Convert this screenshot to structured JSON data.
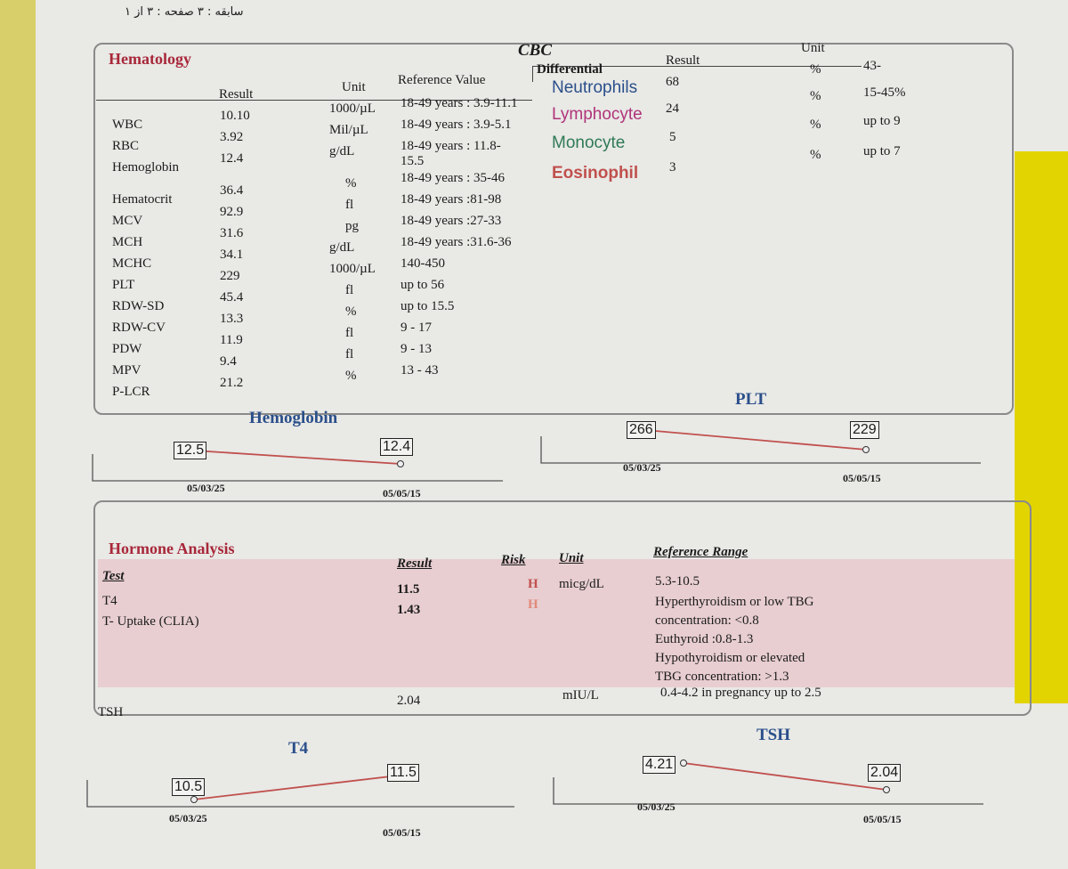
{
  "top_note": "سابقه : ۳ صفحه : ۳ از ۱",
  "hematology": {
    "title": "Hematology",
    "cbc_label": "CBC",
    "headers": {
      "result": "Result",
      "unit": "Unit",
      "reference": "Reference Value"
    },
    "rows": [
      {
        "test": "WBC",
        "result": "10.10",
        "unit": "1000/µL",
        "ref": "18-49 years : 3.9-11.1"
      },
      {
        "test": "RBC",
        "result": "3.92",
        "unit": "Mil/µL",
        "ref": "18-49 years : 3.9-5.1"
      },
      {
        "test": "Hemoglobin",
        "result": "12.4",
        "unit": "g/dL",
        "ref": "18-49 years : 11.8-",
        "ref2": "15.5"
      },
      {
        "test": "Hematocrit",
        "result": "36.4",
        "unit": "%",
        "ref": "18-49 years : 35-46"
      },
      {
        "test": "MCV",
        "result": "92.9",
        "unit": "fl",
        "ref": "18-49 years :81-98"
      },
      {
        "test": "MCH",
        "result": "31.6",
        "unit": "pg",
        "ref": "18-49 years :27-33"
      },
      {
        "test": "MCHC",
        "result": "34.1",
        "unit": "g/dL",
        "ref": "18-49 years :31.6-36"
      },
      {
        "test": "PLT",
        "result": "229",
        "unit": "1000/µL",
        "ref": "140-450"
      },
      {
        "test": "RDW-SD",
        "result": "45.4",
        "unit": "fl",
        "ref": "up to 56"
      },
      {
        "test": "RDW-CV",
        "result": "13.3",
        "unit": "%",
        "ref": "up to 15.5"
      },
      {
        "test": "PDW",
        "result": "11.9",
        "unit": "fl",
        "ref": "9 - 17"
      },
      {
        "test": "MPV",
        "result": "9.4",
        "unit": "fl",
        "ref": "9 - 13"
      },
      {
        "test": "P-LCR",
        "result": "21.2",
        "unit": "%",
        "ref": "13 - 43"
      }
    ],
    "differential": {
      "headers": {
        "name": "Differential",
        "result": "Result",
        "unit": "Unit"
      },
      "rows": [
        {
          "name": "Neutrophils",
          "result": "68",
          "unit": "%",
          "ref": "43-",
          "color": "#2a4f8a"
        },
        {
          "name": "Lymphocyte",
          "result": "24",
          "unit": "%",
          "ref": "15-45%",
          "color": "#b0347a"
        },
        {
          "name": "Monocyte",
          "result": "5",
          "unit": "%",
          "ref": "up to 9",
          "color": "#2f7a55"
        },
        {
          "name": "Eosinophil",
          "result": "3",
          "unit": "%",
          "ref": "up to 7",
          "color": "#c0504d"
        }
      ]
    }
  },
  "hormones": {
    "title": "Hormone Analysis",
    "headers": {
      "test": "Test",
      "result": "Result",
      "risk": "Risk",
      "unit": "Unit",
      "ref": "Reference Range"
    },
    "rows": [
      {
        "test": "T4",
        "result": "11.5",
        "risk": "H",
        "unit": "micg/dL",
        "ref": [
          "5.3-10.5"
        ]
      },
      {
        "test": "T- Uptake (CLIA)",
        "result": "1.43",
        "risk": "H",
        "unit": "",
        "ref": [
          "Hyperthyroidism or low TBG",
          "concentration: <0.8",
          "Euthyroid :0.8-1.3",
          "Hypothyroidism or elevated",
          "TBG concentration: >1.3"
        ]
      },
      {
        "test": "TSH",
        "result": "2.04",
        "risk": "",
        "unit": "mIU/L",
        "ref": [
          "0.4-4.2  in pregnancy up to 2.5"
        ]
      }
    ]
  },
  "chart_data": [
    {
      "type": "line",
      "title": "Hemoglobin",
      "categories": [
        "05/03/25",
        "05/05/15"
      ],
      "values": [
        12.5,
        12.4
      ]
    },
    {
      "type": "line",
      "title": "PLT",
      "categories": [
        "05/03/25",
        "05/05/15"
      ],
      "values": [
        266,
        229
      ]
    },
    {
      "type": "line",
      "title": "T4",
      "categories": [
        "05/03/25",
        "05/05/15"
      ],
      "values": [
        10.5,
        11.5
      ]
    },
    {
      "type": "line",
      "title": "TSH",
      "categories": [
        "05/03/25",
        "05/05/15"
      ],
      "values": [
        4.21,
        2.04
      ]
    }
  ],
  "colors": {
    "accent": "#a8283a",
    "chart_line": "#c0504d",
    "title_blue": "#2a4f8a",
    "highlight": "#e8c9cc"
  }
}
